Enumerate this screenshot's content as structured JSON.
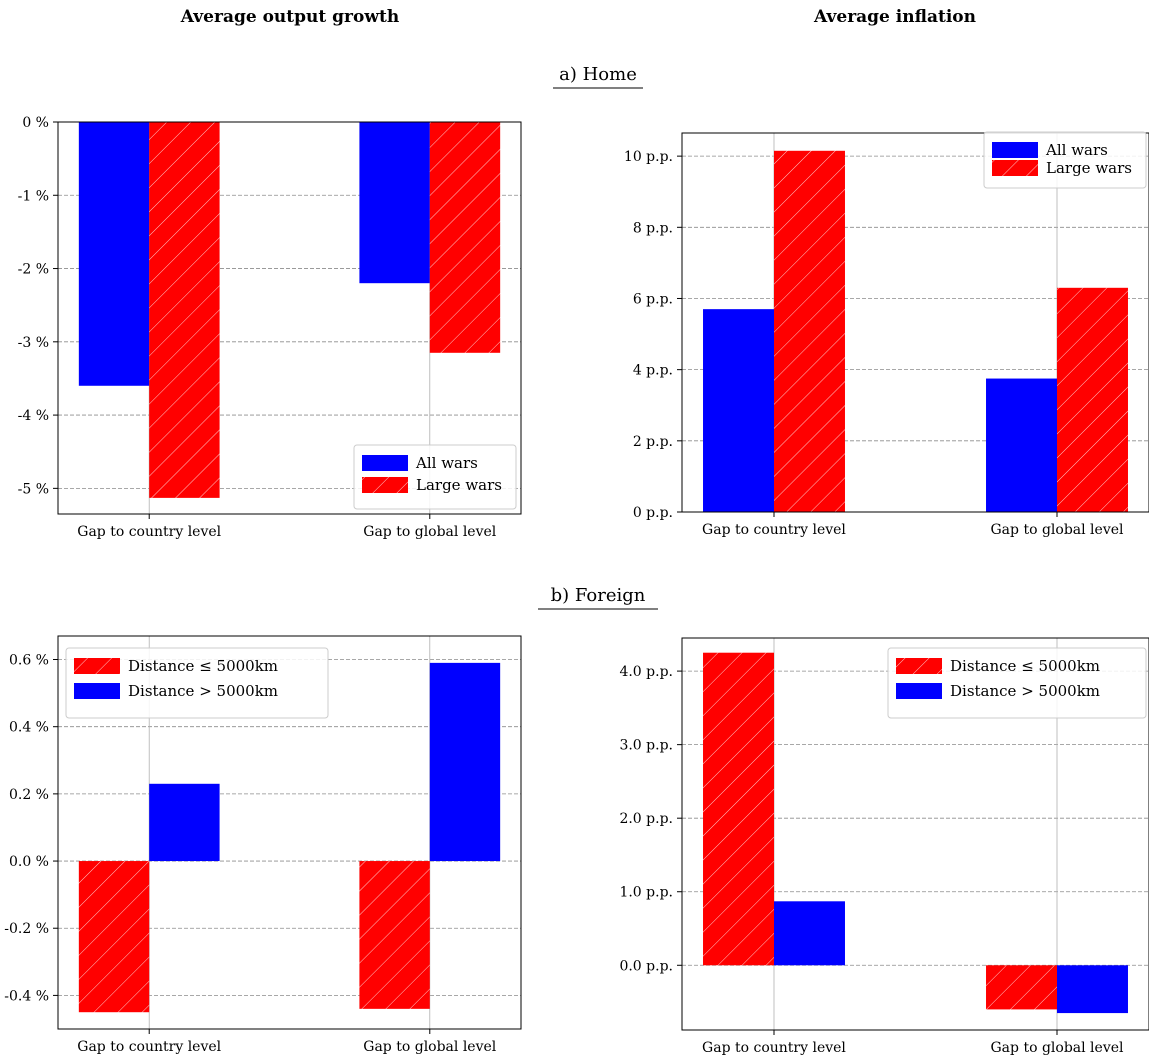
{
  "columns": {
    "left_title": "Average output growth",
    "right_title": "Average inflation"
  },
  "panels": {
    "home_title": "a) Home",
    "foreign_title": "b) Foreign"
  },
  "colors": {
    "blue": "#0000ff",
    "red": "#ff0000",
    "grid": "#8c8c8c"
  },
  "chart_data": [
    {
      "type": "bar",
      "panel": "a) Home",
      "column": "Average output growth",
      "categories": [
        "Gap to country level",
        "Gap to global level"
      ],
      "series": [
        {
          "name": "All wars",
          "color": "blue",
          "hatch": false,
          "values": [
            -3.6,
            -2.2
          ]
        },
        {
          "name": "Large wars",
          "color": "red",
          "hatch": true,
          "values": [
            -5.13,
            -3.15
          ]
        }
      ],
      "unit": "%",
      "ylim": [
        -5.35,
        0
      ],
      "yticks": [
        0,
        -1,
        -2,
        -3,
        -4,
        -5
      ],
      "ytick_labels": [
        "0 %",
        "-1 %",
        "-2 %",
        "-3 %",
        "-4 %",
        "-5 %"
      ],
      "grid": true,
      "legend_position": "lower-right"
    },
    {
      "type": "bar",
      "panel": "a) Home",
      "column": "Average inflation",
      "categories": [
        "Gap to country level",
        "Gap to global level"
      ],
      "series": [
        {
          "name": "All wars",
          "color": "blue",
          "hatch": false,
          "values": [
            5.7,
            3.75
          ]
        },
        {
          "name": "Large wars",
          "color": "red",
          "hatch": true,
          "values": [
            10.15,
            6.3
          ]
        }
      ],
      "unit": "p.p.",
      "ylim": [
        0,
        10.65
      ],
      "yticks": [
        0,
        2,
        4,
        6,
        8,
        10
      ],
      "ytick_labels": [
        "0 p.p.",
        "2 p.p.",
        "4 p.p.",
        "6 p.p.",
        "8 p.p.",
        "10 p.p."
      ],
      "grid": true,
      "legend_position": "upper-right"
    },
    {
      "type": "bar",
      "panel": "b) Foreign",
      "column": "Average output growth",
      "categories": [
        "Gap to country level",
        "Gap to global level"
      ],
      "series": [
        {
          "name": "Distance ≤ 5000km",
          "color": "red",
          "hatch": true,
          "values": [
            -0.45,
            -0.44
          ]
        },
        {
          "name": "Distance > 5000km",
          "color": "blue",
          "hatch": false,
          "values": [
            0.23,
            0.59
          ]
        }
      ],
      "unit": "%",
      "ylim": [
        -0.5,
        0.67
      ],
      "yticks": [
        0.6,
        0.4,
        0.2,
        0.0,
        -0.2,
        -0.4
      ],
      "ytick_labels": [
        "0.6 %",
        "0.4 %",
        "0.2 %",
        "0.0 %",
        "-0.2 %",
        "-0.4 %"
      ],
      "grid": true,
      "legend_position": "upper-left"
    },
    {
      "type": "bar",
      "panel": "b) Foreign",
      "column": "Average inflation",
      "categories": [
        "Gap to country level",
        "Gap to global level"
      ],
      "series": [
        {
          "name": "Distance ≤ 5000km",
          "color": "red",
          "hatch": true,
          "values": [
            4.25,
            -0.6
          ]
        },
        {
          "name": "Distance > 5000km",
          "color": "blue",
          "hatch": false,
          "values": [
            0.87,
            -0.65
          ]
        }
      ],
      "unit": "p.p.",
      "ylim": [
        -0.88,
        4.45
      ],
      "yticks": [
        4.0,
        3.0,
        2.0,
        1.0,
        0.0
      ],
      "ytick_labels": [
        "4.0 p.p.",
        "3.0 p.p.",
        "2.0 p.p.",
        "1.0 p.p.",
        "0.0 p.p."
      ],
      "grid": true,
      "legend_position": "upper-right"
    }
  ]
}
